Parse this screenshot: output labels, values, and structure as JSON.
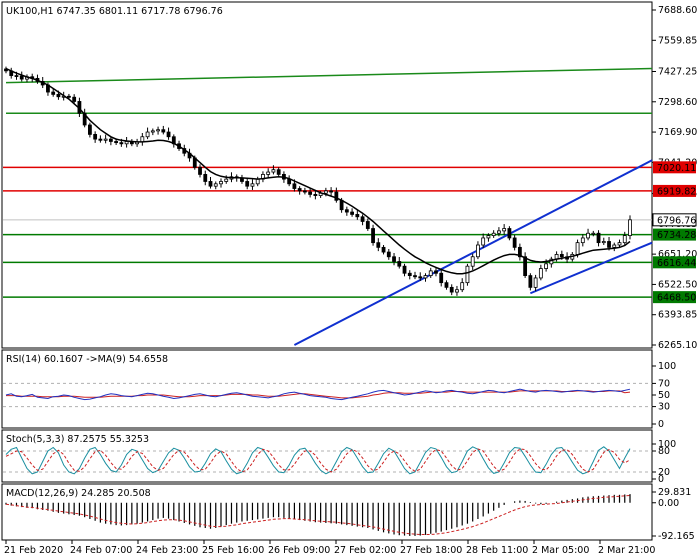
{
  "chart_data": {
    "type": "candlestick",
    "symbol_header": "UK100,H1  6747.35 6801.11 6717.78 6796.76",
    "ohlc": {
      "open": 6747.35,
      "high": 6801.11,
      "low": 6717.78,
      "close": 6796.76
    },
    "ylim": [
      6265.1,
      7688.6
    ],
    "price_ticks": [
      "7688.60",
      "7559.85",
      "7427.25",
      "7298.60",
      "7169.90",
      "7041.20",
      "6908.55",
      "6779.85",
      "6651.20",
      "6522.50",
      "6393.85",
      "6265.10"
    ],
    "time_labels": [
      "21 Feb 2020",
      "24 Feb 07:00",
      "24 Feb 23:00",
      "25 Feb 16:00",
      "26 Feb 09:00",
      "27 Feb 02:00",
      "27 Feb 18:00",
      "28 Feb 11:00",
      "2 Mar 05:00",
      "2 Mar 21:00"
    ],
    "closes": [
      7430,
      7410,
      7408,
      7395,
      7405,
      7398,
      7385,
      7370,
      7340,
      7330,
      7320,
      7322,
      7318,
      7300,
      7250,
      7200,
      7160,
      7140,
      7135,
      7140,
      7130,
      7125,
      7120,
      7130,
      7120,
      7128,
      7150,
      7170,
      7175,
      7180,
      7170,
      7150,
      7120,
      7100,
      7080,
      7060,
      7020,
      6990,
      6960,
      6940,
      6950,
      6960,
      6970,
      6980,
      6975,
      6960,
      6940,
      6950,
      6970,
      6990,
      7000,
      7010,
      6990,
      6970,
      6950,
      6930,
      6920,
      6915,
      6905,
      6900,
      6910,
      6920,
      6915,
      6880,
      6840,
      6830,
      6820,
      6810,
      6790,
      6760,
      6700,
      6680,
      6660,
      6640,
      6620,
      6600,
      6570,
      6560,
      6555,
      6550,
      6560,
      6580,
      6570,
      6530,
      6510,
      6490,
      6500,
      6530,
      6600,
      6640,
      6690,
      6720,
      6730,
      6740,
      6750,
      6760,
      6720,
      6680,
      6640,
      6560,
      6510,
      6550,
      6590,
      6610,
      6630,
      6650,
      6640,
      6630,
      6650,
      6700,
      6720,
      6740,
      6740,
      6700,
      6705,
      6680,
      6690,
      6700,
      6730,
      6797
    ],
    "ma_closes": [
      7440,
      7430,
      7420,
      7412,
      7404,
      7398,
      7390,
      7380,
      7370,
      7355,
      7340,
      7325,
      7310,
      7290,
      7270,
      7245,
      7220,
      7200,
      7180,
      7165,
      7150,
      7140,
      7135,
      7132,
      7130,
      7128,
      7128,
      7130,
      7132,
      7135,
      7134,
      7130,
      7122,
      7110,
      7095,
      7080,
      7060,
      7040,
      7020,
      7002,
      6990,
      6982,
      6978,
      6976,
      6976,
      6975,
      6974,
      6972,
      6970,
      6972,
      6975,
      6978,
      6980,
      6978,
      6972,
      6962,
      6952,
      6942,
      6932,
      6922,
      6912,
      6905,
      6898,
      6890,
      6880,
      6868,
      6855,
      6840,
      6825,
      6808,
      6790,
      6770,
      6750,
      6730,
      6710,
      6690,
      6672,
      6655,
      6640,
      6628,
      6615,
      6604,
      6595,
      6586,
      6578,
      6572,
      6568,
      6568,
      6572,
      6580,
      6590,
      6602,
      6614,
      6626,
      6636,
      6645,
      6650,
      6650,
      6646,
      6635,
      6625,
      6620,
      6618,
      6620,
      6624,
      6630,
      6634,
      6638,
      6642,
      6648,
      6655,
      6662,
      6668,
      6670,
      6672,
      6674,
      6676,
      6680,
      6688,
      6705
    ],
    "levels": [
      {
        "label": "7020.11",
        "value": 7020.11,
        "color": "#e00000"
      },
      {
        "label": "6919.82",
        "value": 6919.82,
        "color": "#e00000"
      },
      {
        "label": "6734.28",
        "value": 6734.28,
        "color": "#007a00"
      },
      {
        "label": "6616.44",
        "value": 6616.44,
        "color": "#007a00"
      },
      {
        "label": "6468.50",
        "value": 6468.5,
        "color": "#007a00"
      }
    ],
    "current_price_label": "6796.76",
    "green_channel": [
      {
        "from": [
          0,
          7380
        ],
        "to": [
          120,
          7440
        ]
      },
      {
        "from": [
          0,
          7250
        ],
        "to": [
          120,
          7250
        ]
      }
    ],
    "blue_channel": [
      {
        "from": [
          55,
          6265
        ],
        "to": [
          120,
          7050
        ]
      },
      {
        "from": [
          100,
          6485
        ],
        "to": [
          120,
          6700
        ]
      }
    ],
    "rsi": {
      "header": "RSI(14) 60.1607  ->MA(9) 54.6558",
      "ticks": [
        "100",
        "70",
        "50",
        "30",
        "0"
      ],
      "levels": [
        70,
        30
      ],
      "values": [
        50,
        52,
        48,
        47,
        49,
        51,
        46,
        45,
        44,
        47,
        48,
        50,
        49,
        46,
        44,
        42,
        43,
        45,
        47,
        50,
        52,
        51,
        49,
        48,
        47,
        49,
        51,
        53,
        52,
        50,
        48,
        46,
        44,
        45,
        47,
        49,
        51,
        52,
        50,
        48,
        47,
        49,
        51,
        53,
        54,
        52,
        50,
        48,
        47,
        46,
        45,
        47,
        49,
        52,
        54,
        55,
        53,
        51,
        49,
        48,
        47,
        46,
        44,
        43,
        42,
        44,
        46,
        48,
        50,
        52,
        55,
        57,
        58,
        56,
        54,
        52,
        50,
        51,
        53,
        55,
        57,
        56,
        54,
        55,
        57,
        58,
        56,
        55,
        53,
        52,
        54,
        56,
        58,
        57,
        55,
        54,
        56,
        58,
        60,
        58,
        56,
        55,
        57,
        58,
        57,
        56,
        55,
        56,
        57,
        58,
        57,
        56,
        55,
        56,
        57,
        58,
        57,
        56,
        58,
        60
      ],
      "ma": [
        49,
        49,
        49,
        48,
        48,
        48,
        48,
        47,
        47,
        47,
        47,
        48,
        48,
        48,
        47,
        46,
        46,
        46,
        46,
        47,
        48,
        48,
        48,
        48,
        48,
        49,
        49,
        50,
        50,
        50,
        50,
        49,
        48,
        47,
        47,
        47,
        48,
        49,
        49,
        49,
        49,
        49,
        50,
        51,
        51,
        51,
        51,
        50,
        50,
        49,
        48,
        48,
        48,
        49,
        50,
        51,
        52,
        52,
        51,
        50,
        49,
        48,
        47,
        46,
        45,
        45,
        45,
        46,
        47,
        48,
        50,
        51,
        53,
        54,
        54,
        54,
        53,
        53,
        53,
        53,
        54,
        55,
        55,
        55,
        55,
        56,
        56,
        56,
        55,
        55,
        55,
        55,
        55,
        55,
        55,
        55,
        55,
        56,
        57,
        57,
        57,
        57,
        57,
        57,
        57,
        57,
        56,
        56,
        56,
        57,
        57,
        57,
        56,
        56,
        56,
        57,
        57,
        57,
        54,
        55
      ]
    },
    "stoch": {
      "header": "Stoch(5,3,3) 87.2575 55.3253",
      "ticks": [
        "100",
        "80",
        "20",
        "0"
      ],
      "levels": [
        80,
        20
      ],
      "k": [
        70,
        85,
        90,
        60,
        30,
        15,
        20,
        50,
        80,
        90,
        75,
        40,
        20,
        15,
        30,
        60,
        85,
        90,
        70,
        45,
        25,
        20,
        40,
        70,
        85,
        80,
        55,
        30,
        18,
        25,
        50,
        75,
        88,
        82,
        60,
        35,
        20,
        22,
        45,
        72,
        86,
        78,
        52,
        28,
        15,
        20,
        45,
        75,
        90,
        85,
        62,
        38,
        20,
        18,
        40,
        68,
        85,
        88,
        70,
        45,
        25,
        15,
        22,
        50,
        78,
        90,
        84,
        60,
        35,
        18,
        20,
        45,
        72,
        88,
        80,
        55,
        30,
        15,
        20,
        48,
        76,
        90,
        86,
        62,
        35,
        18,
        22,
        50,
        80,
        92,
        85,
        58,
        32,
        16,
        20,
        46,
        75,
        90,
        88,
        65,
        40,
        20,
        18,
        42,
        70,
        88,
        90,
        72,
        48,
        25,
        15,
        20,
        50,
        82,
        92,
        80,
        55,
        30,
        60,
        87
      ],
      "d": [
        65,
        72,
        80,
        78,
        60,
        40,
        25,
        28,
        50,
        72,
        82,
        70,
        45,
        25,
        22,
        35,
        58,
        78,
        82,
        68,
        47,
        30,
        28,
        42,
        65,
        78,
        73,
        55,
        35,
        25,
        30,
        50,
        70,
        82,
        77,
        60,
        40,
        26,
        28,
        46,
        68,
        80,
        72,
        50,
        30,
        20,
        26,
        46,
        70,
        85,
        80,
        62,
        40,
        26,
        26,
        42,
        64,
        80,
        80,
        68,
        46,
        28,
        20,
        28,
        50,
        72,
        84,
        78,
        60,
        38,
        24,
        28,
        48,
        70,
        80,
        72,
        52,
        32,
        22,
        28,
        50,
        72,
        84,
        80,
        60,
        38,
        25,
        30,
        52,
        76,
        86,
        80,
        58,
        36,
        22,
        28,
        48,
        72,
        86,
        84,
        66,
        44,
        28,
        26,
        42,
        66,
        82,
        84,
        70,
        48,
        28,
        20,
        28,
        52,
        76,
        84,
        76,
        56,
        46,
        55
      ]
    },
    "macd": {
      "header": "MACD(12,26,9) 24.285 20.508",
      "ticks": [
        "29.831",
        "0.00",
        "-92.165"
      ],
      "hist": [
        -5,
        -8,
        -10,
        -12,
        -14,
        -15,
        -18,
        -20,
        -22,
        -25,
        -28,
        -30,
        -32,
        -34,
        -36,
        -40,
        -45,
        -50,
        -55,
        -58,
        -60,
        -62,
        -63,
        -62,
        -60,
        -58,
        -55,
        -52,
        -48,
        -44,
        -42,
        -44,
        -48,
        -52,
        -56,
        -60,
        -64,
        -68,
        -70,
        -72,
        -70,
        -66,
        -62,
        -58,
        -55,
        -52,
        -50,
        -48,
        -46,
        -44,
        -42,
        -40,
        -40,
        -42,
        -44,
        -46,
        -48,
        -50,
        -52,
        -54,
        -55,
        -56,
        -57,
        -58,
        -60,
        -62,
        -64,
        -66,
        -68,
        -70,
        -74,
        -78,
        -82,
        -85,
        -88,
        -90,
        -91,
        -92,
        -92,
        -91,
        -89,
        -86,
        -83,
        -80,
        -76,
        -72,
        -68,
        -63,
        -58,
        -52,
        -45,
        -38,
        -30,
        -22,
        -14,
        -6,
        0,
        4,
        6,
        5,
        2,
        -2,
        -4,
        -3,
        0,
        3,
        6,
        8,
        10,
        12,
        15,
        17,
        18,
        19,
        20,
        21,
        22,
        22,
        23,
        24
      ],
      "signal": [
        -4,
        -6,
        -8,
        -10,
        -12,
        -13,
        -15,
        -17,
        -19,
        -21,
        -23,
        -25,
        -27,
        -29,
        -31,
        -34,
        -37,
        -41,
        -45,
        -49,
        -52,
        -55,
        -57,
        -58,
        -59,
        -58,
        -57,
        -55,
        -52,
        -50,
        -48,
        -47,
        -47,
        -48,
        -50,
        -53,
        -56,
        -59,
        -62,
        -65,
        -66,
        -66,
        -65,
        -63,
        -61,
        -58,
        -56,
        -54,
        -52,
        -50,
        -48,
        -46,
        -45,
        -44,
        -44,
        -45,
        -46,
        -47,
        -48,
        -50,
        -51,
        -52,
        -53,
        -54,
        -56,
        -57,
        -59,
        -61,
        -63,
        -65,
        -67,
        -70,
        -73,
        -76,
        -79,
        -82,
        -84,
        -86,
        -87,
        -88,
        -88,
        -88,
        -87,
        -85,
        -83,
        -80,
        -77,
        -74,
        -70,
        -66,
        -61,
        -56,
        -50,
        -44,
        -38,
        -32,
        -26,
        -20,
        -15,
        -11,
        -8,
        -6,
        -5,
        -4,
        -3,
        -2,
        0,
        2,
        4,
        6,
        8,
        10,
        12,
        13,
        15,
        16,
        17,
        18,
        19,
        20.5
      ]
    }
  }
}
